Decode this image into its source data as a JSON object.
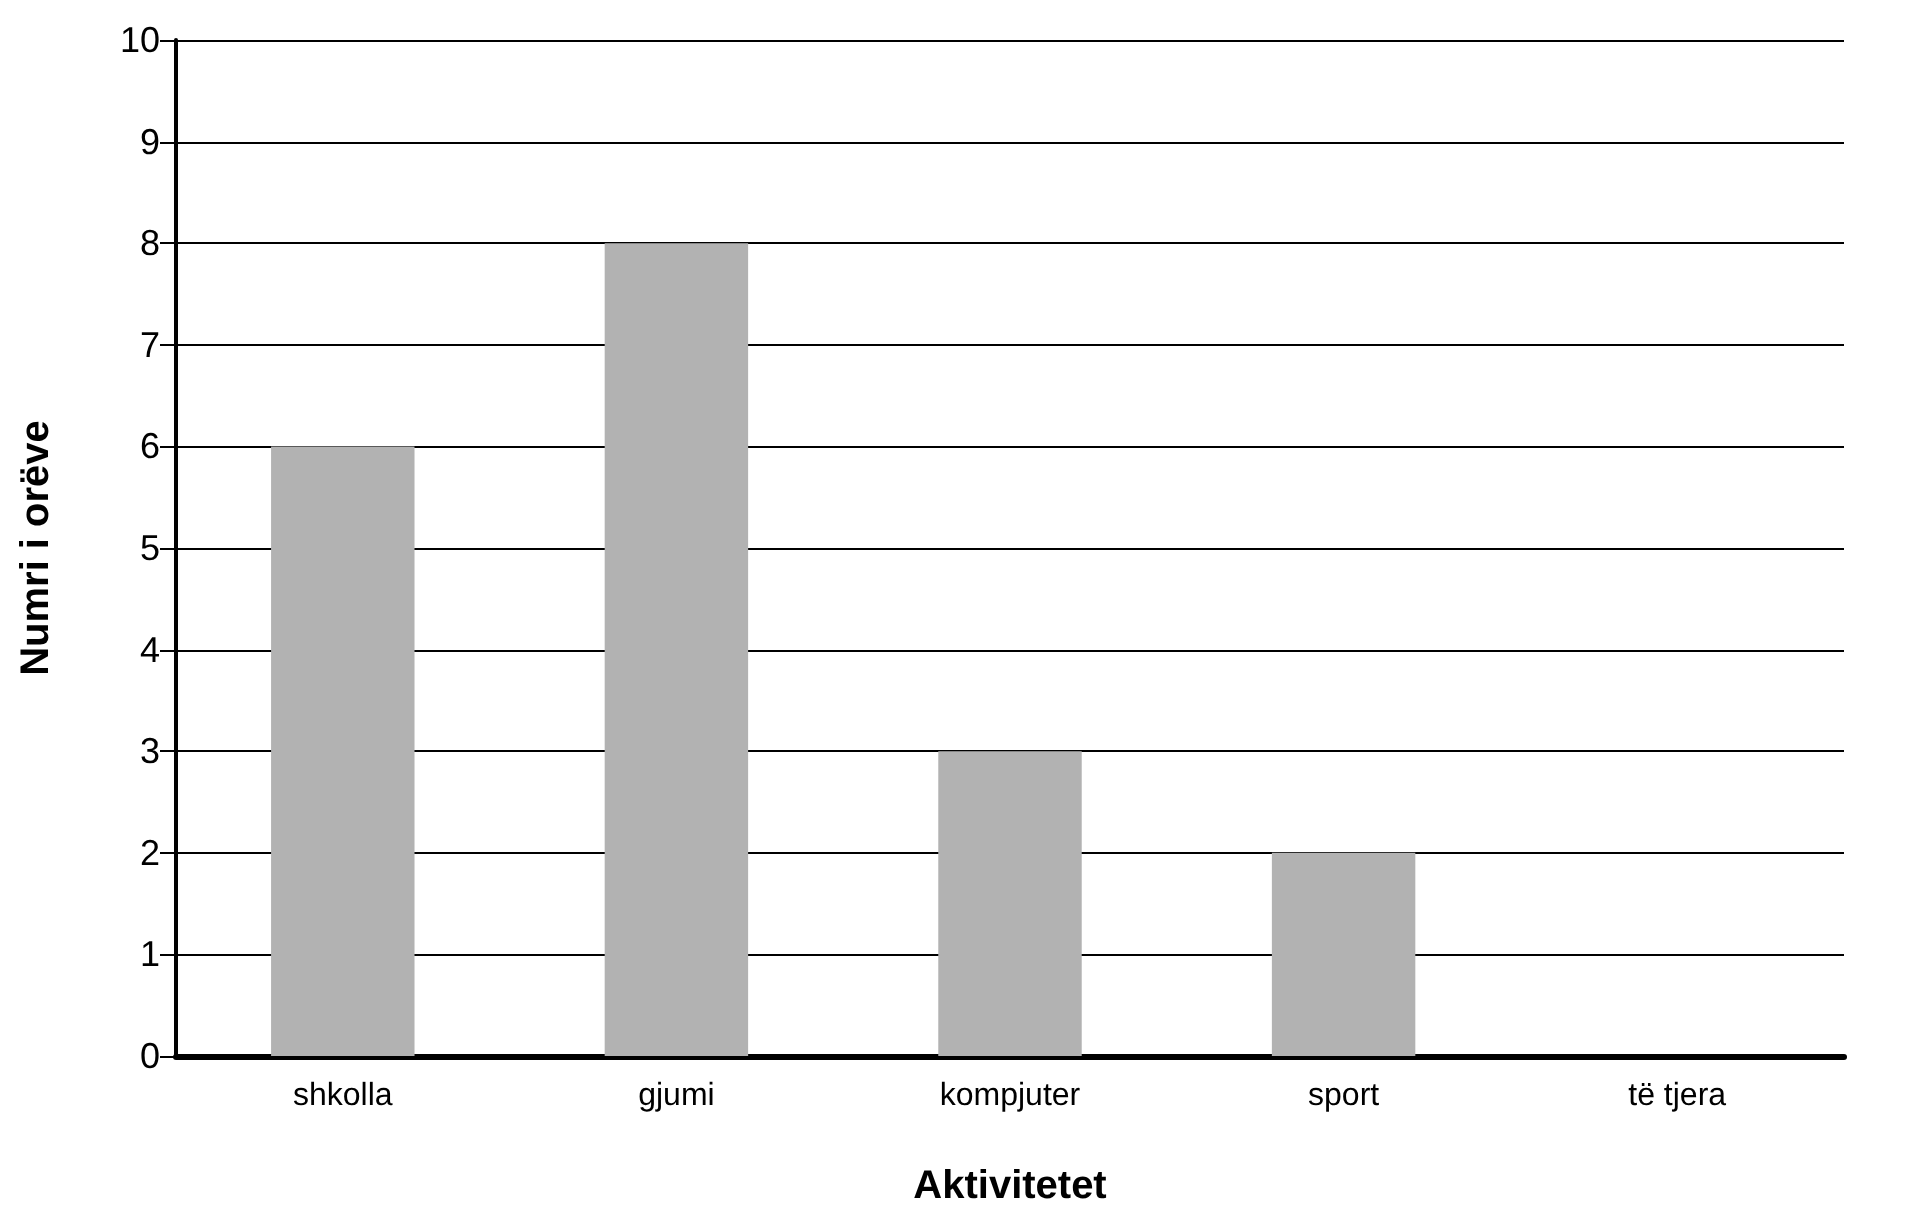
{
  "chart_data": {
    "type": "bar",
    "xlabel": "Aktivitetet",
    "ylabel": "Numri i orëve",
    "categories": [
      "shkolla",
      "gjumi",
      "kompjuter",
      "sport",
      "të tjera"
    ],
    "values": [
      6,
      8,
      3,
      2,
      0
    ],
    "color": "#b2b2b2",
    "ylim": [
      0,
      10
    ],
    "yticks": [
      0,
      1,
      2,
      3,
      4,
      5,
      6,
      7,
      8,
      9,
      10
    ],
    "grid": "y"
  }
}
